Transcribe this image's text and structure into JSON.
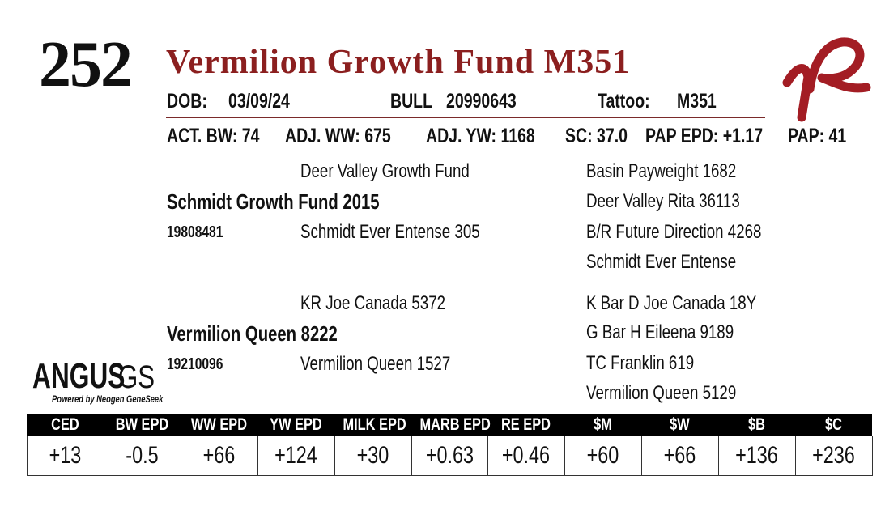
{
  "lot": "252",
  "title": "Vermilion Growth Fund M351",
  "info_row1": [
    {
      "label": "DOB:",
      "value": "03/09/24"
    },
    {
      "label": "BULL",
      "value": "20990643"
    },
    {
      "label": "Tattoo:",
      "value": "M351"
    }
  ],
  "info_row2": [
    "ACT. BW: 74",
    "ADJ. WW: 675",
    "ADJ. YW: 1168",
    "SC: 37.0",
    "PAP EPD: +1.17",
    "PAP: 41"
  ],
  "pedigree": {
    "sire": {
      "name": "Schmidt Growth Fund 2015",
      "reg": "19808481",
      "sire": "Deer Valley Growth Fund",
      "dam": "Schmidt Ever Entense 305",
      "grandparents": [
        "Basin Payweight 1682",
        "Deer Valley Rita 36113",
        "B/R Future Direction 4268",
        "Schmidt Ever Entense"
      ]
    },
    "dam": {
      "name": "Vermilion Queen 8222",
      "reg": "19210096",
      "sire": "KR Joe Canada 5372",
      "dam": "Vermilion Queen 1527",
      "grandparents": [
        "K Bar D Joe Canada 18Y",
        "G Bar H Eileena 9189",
        "TC Franklin 619",
        "Vermilion Queen 5129"
      ]
    }
  },
  "logo": {
    "brand": "ANGUS",
    "suffix": "GS",
    "tagline": "Powered by Neogen GeneSeek"
  },
  "epd_table": {
    "headers": [
      "CED",
      "BW EPD",
      "WW EPD",
      "YW EPD",
      "MILK EPD",
      "MARB EPD",
      "RE EPD",
      "$M",
      "$W",
      "$B",
      "$C"
    ],
    "values": [
      "+13",
      "-0.5",
      "+66",
      "+124",
      "+30",
      "+0.63",
      "+0.46",
      "+60",
      "+66",
      "+136",
      "+236"
    ]
  }
}
